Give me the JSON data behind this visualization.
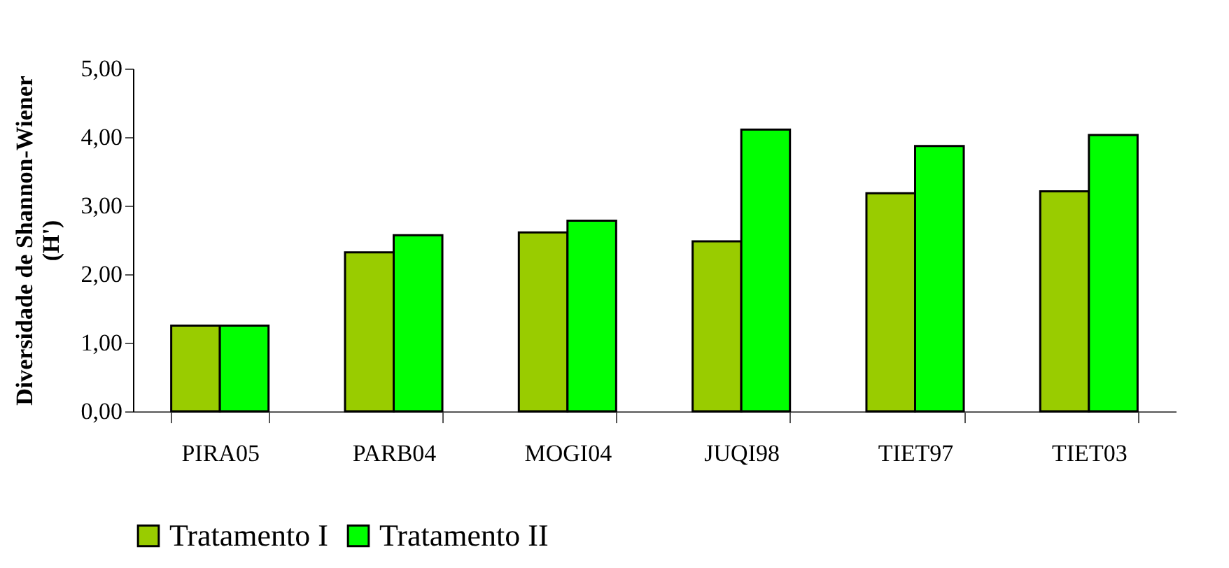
{
  "chart_data": {
    "type": "bar",
    "ylabel": "Diversidade de Shannon-Wiener (H')",
    "categories": [
      "PIRA05",
      "PARB04",
      "MOGI04",
      "JUQI98",
      "TIET97",
      "TIET03"
    ],
    "series": [
      {
        "name": "Tratamento I",
        "color": "#99cc00",
        "values": [
          1.25,
          2.32,
          2.61,
          2.48,
          3.18,
          3.21
        ]
      },
      {
        "name": "Tratamento II",
        "color": "#00ff00",
        "values": [
          1.25,
          2.57,
          2.78,
          4.11,
          3.87,
          4.03
        ]
      }
    ],
    "ylim": [
      0,
      5
    ],
    "yticks": [
      {
        "value": 0,
        "label": "0,00"
      },
      {
        "value": 1,
        "label": "1,00"
      },
      {
        "value": 2,
        "label": "2,00"
      },
      {
        "value": 3,
        "label": "3,00"
      },
      {
        "value": 4,
        "label": "4,00"
      },
      {
        "value": 5,
        "label": "5,00"
      }
    ],
    "grid": false,
    "legend": "bottom"
  }
}
